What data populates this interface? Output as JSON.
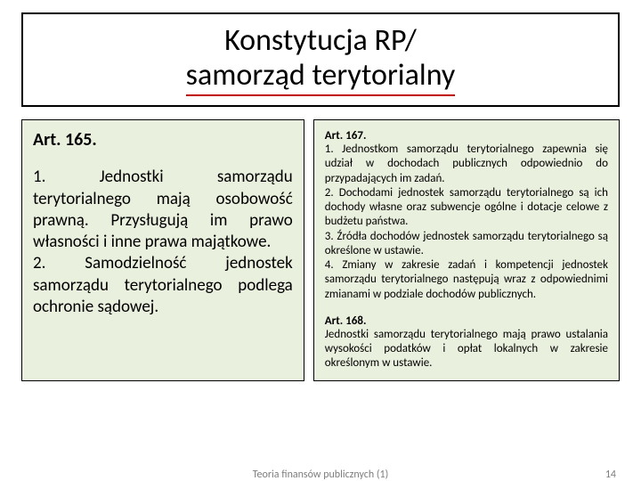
{
  "title": {
    "line1": "Konstytucja RP/",
    "line2": "samorząd terytorialny"
  },
  "left": {
    "heading": "Art. 165.",
    "body": "1. Jednostki samorządu terytorialnego mają osobowość prawną. Przysługują im prawo własności i inne prawa majątkowe.\n2. Samodzielność jednostek samorządu terytorialnego podlega ochronie sądowej."
  },
  "right": {
    "block1_heading": "Art. 167.",
    "block1_body": "1. Jednostkom samorządu terytorialnego zapewnia się udział w dochodach publicznych odpowiednio do przypadających im zadań.\n2. Dochodami jednostek samorządu terytorialnego są ich dochody własne oraz subwencje ogólne i dotacje celowe z budżetu państwa.\n3. Źródła dochodów jednostek samorządu terytorialnego są określone w ustawie.\n4. Zmiany w zakresie zadań i kompetencji jednostek samorządu terytorialnego następują wraz z odpowiednimi zmianami w podziale dochodów publicznych.",
    "block2_heading": "Art. 168.",
    "block2_body": "Jednostki samorządu terytorialnego mają prawo ustalania wysokości podatków i opłat lokalnych w zakresie określonym w ustawie."
  },
  "footer": {
    "center": "Teoria finansów publicznych (1)",
    "page": "14"
  },
  "colors": {
    "box_bg": "#eaf0de",
    "underline": "#c00000",
    "footer_text": "#7d7d7d"
  }
}
